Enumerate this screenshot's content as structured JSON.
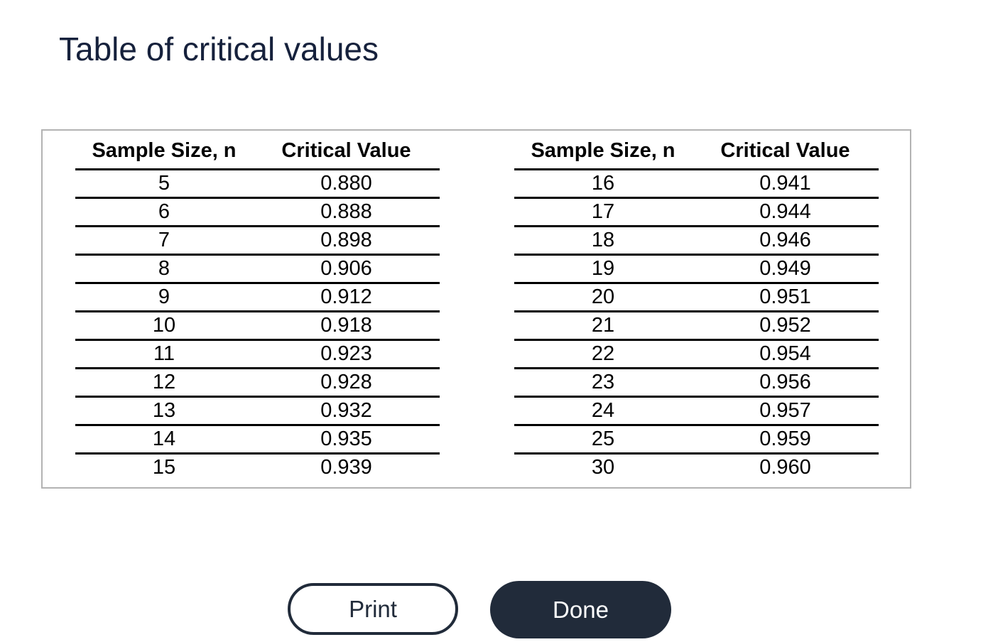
{
  "window": {
    "title": "Table of critical values"
  },
  "panel": {
    "tables": [
      {
        "headers": [
          "Sample Size, n",
          "Critical Value"
        ],
        "rows": [
          [
            "5",
            "0.880"
          ],
          [
            "6",
            "0.888"
          ],
          [
            "7",
            "0.898"
          ],
          [
            "8",
            "0.906"
          ],
          [
            "9",
            "0.912"
          ],
          [
            "10",
            "0.918"
          ],
          [
            "11",
            "0.923"
          ],
          [
            "12",
            "0.928"
          ],
          [
            "13",
            "0.932"
          ],
          [
            "14",
            "0.935"
          ],
          [
            "15",
            "0.939"
          ]
        ]
      },
      {
        "headers": [
          "Sample Size, n",
          "Critical Value"
        ],
        "rows": [
          [
            "16",
            "0.941"
          ],
          [
            "17",
            "0.944"
          ],
          [
            "18",
            "0.946"
          ],
          [
            "19",
            "0.949"
          ],
          [
            "20",
            "0.951"
          ],
          [
            "21",
            "0.952"
          ],
          [
            "22",
            "0.954"
          ],
          [
            "23",
            "0.956"
          ],
          [
            "24",
            "0.957"
          ],
          [
            "25",
            "0.959"
          ],
          [
            "30",
            "0.960"
          ]
        ]
      }
    ]
  },
  "buttons": {
    "print": "Print",
    "done": "Done"
  },
  "icons": {
    "minimize": "minimize-icon",
    "close": "close-icon"
  },
  "colors": {
    "title_text": "#16213c",
    "button_dark": "#212b3a",
    "close_icon": "#3e4e62",
    "minimize_icon": "#4a4a4a",
    "panel_border": "#b3b3b3",
    "table_text": "#000000"
  }
}
